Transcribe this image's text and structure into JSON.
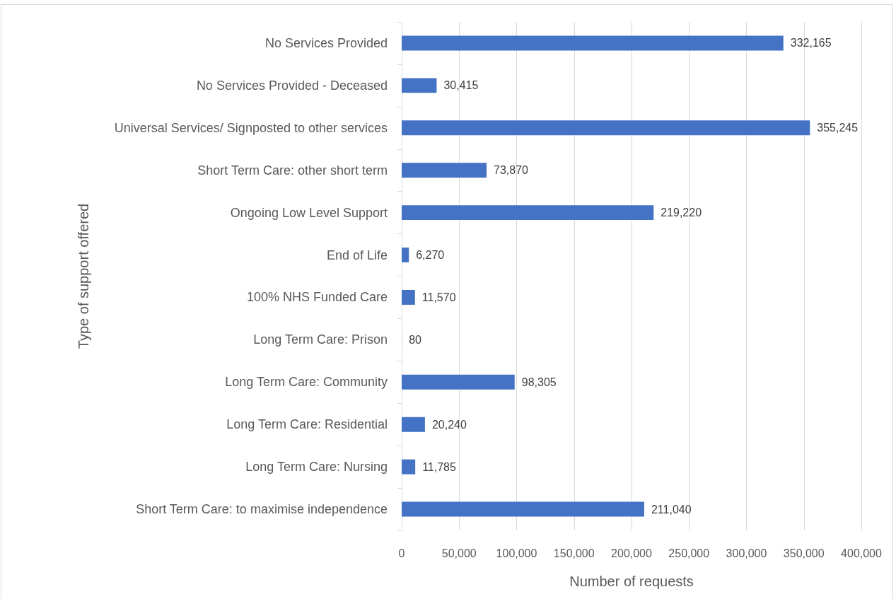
{
  "chart_data": {
    "type": "bar",
    "orientation": "horizontal",
    "xlabel": "Number of requests",
    "ylabel": "Type of support offered",
    "categories": [
      "No Services Provided",
      "No Services Provided - Deceased",
      "Universal Services/ Signposted to other services",
      "Short Term Care: other short term",
      "Ongoing Low Level Support",
      "End of Life",
      "100% NHS Funded Care",
      "Long Term Care: Prison",
      "Long Term Care: Community",
      "Long Term Care: Residential",
      "Long Term Care: Nursing",
      "Short Term Care: to maximise independence"
    ],
    "values": [
      332165,
      30415,
      355245,
      73870,
      219220,
      6270,
      11570,
      80,
      98305,
      20240,
      11785,
      211040
    ],
    "value_labels": [
      "332,165",
      "30,415",
      "355,245",
      "73,870",
      "219,220",
      "6,270",
      "11,570",
      "80",
      "98,305",
      "20,240",
      "11,785",
      "211,040"
    ],
    "color": "#4472c4",
    "xlim": [
      0,
      400000
    ],
    "xticks": [
      {
        "value": 0,
        "label": "0"
      },
      {
        "value": 50000,
        "label": "50,000"
      },
      {
        "value": 100000,
        "label": "100,000"
      },
      {
        "value": 150000,
        "label": "150,000"
      },
      {
        "value": 200000,
        "label": "200,000"
      },
      {
        "value": 250000,
        "label": "250,000"
      },
      {
        "value": 300000,
        "label": "300,000"
      },
      {
        "value": 350000,
        "label": "350,000"
      },
      {
        "value": 400000,
        "label": "400,000"
      }
    ],
    "grid": "x"
  }
}
